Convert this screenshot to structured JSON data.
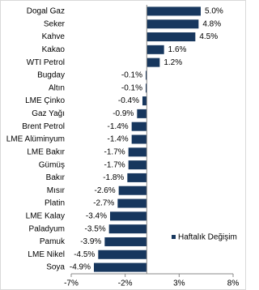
{
  "chart_data": {
    "type": "bar",
    "orientation": "horizontal",
    "categories": [
      "Dogal Gaz",
      "Seker",
      "Kahve",
      "Kakao",
      "WTI Petrol",
      "Bugday",
      "Altın",
      "LME Çinko",
      "Gaz Yağı",
      "Brent Petrol",
      "LME Alüminyum",
      "LME Bakır",
      "Gümüş",
      "Bakır",
      "Mısır",
      "Platin",
      "LME Kalay",
      "Paladyum",
      "Pamuk",
      "LME Nikel",
      "Soya"
    ],
    "series": [
      {
        "name": "Haftalık Değişim",
        "color": "#17375e",
        "values": [
          5.0,
          4.8,
          4.5,
          1.6,
          1.2,
          -0.1,
          -0.1,
          -0.4,
          -0.9,
          -1.4,
          -1.4,
          -1.7,
          -1.7,
          -1.8,
          -2.6,
          -2.7,
          -3.4,
          -3.5,
          -3.9,
          -4.5,
          -4.9
        ],
        "value_labels": [
          "5.0%",
          "4.8%",
          "4.5%",
          "1.6%",
          "1.2%",
          "-0.1%",
          "-0.1%",
          "-0.4%",
          "-0.9%",
          "-1.4%",
          "-1.4%",
          "-1.7%",
          "-1.7%",
          "-1.8%",
          "-2.6%",
          "-2.7%",
          "-3.4%",
          "-3.5%",
          "-3.9%",
          "-4.5%",
          "-4.9%"
        ]
      }
    ],
    "xlim": [
      -7,
      8
    ],
    "xticks": [
      {
        "value": -7,
        "label": "-7%"
      },
      {
        "value": -2,
        "label": "-2%"
      },
      {
        "value": 3,
        "label": "3%"
      },
      {
        "value": 8,
        "label": "8%"
      }
    ],
    "legend": "lower right"
  }
}
